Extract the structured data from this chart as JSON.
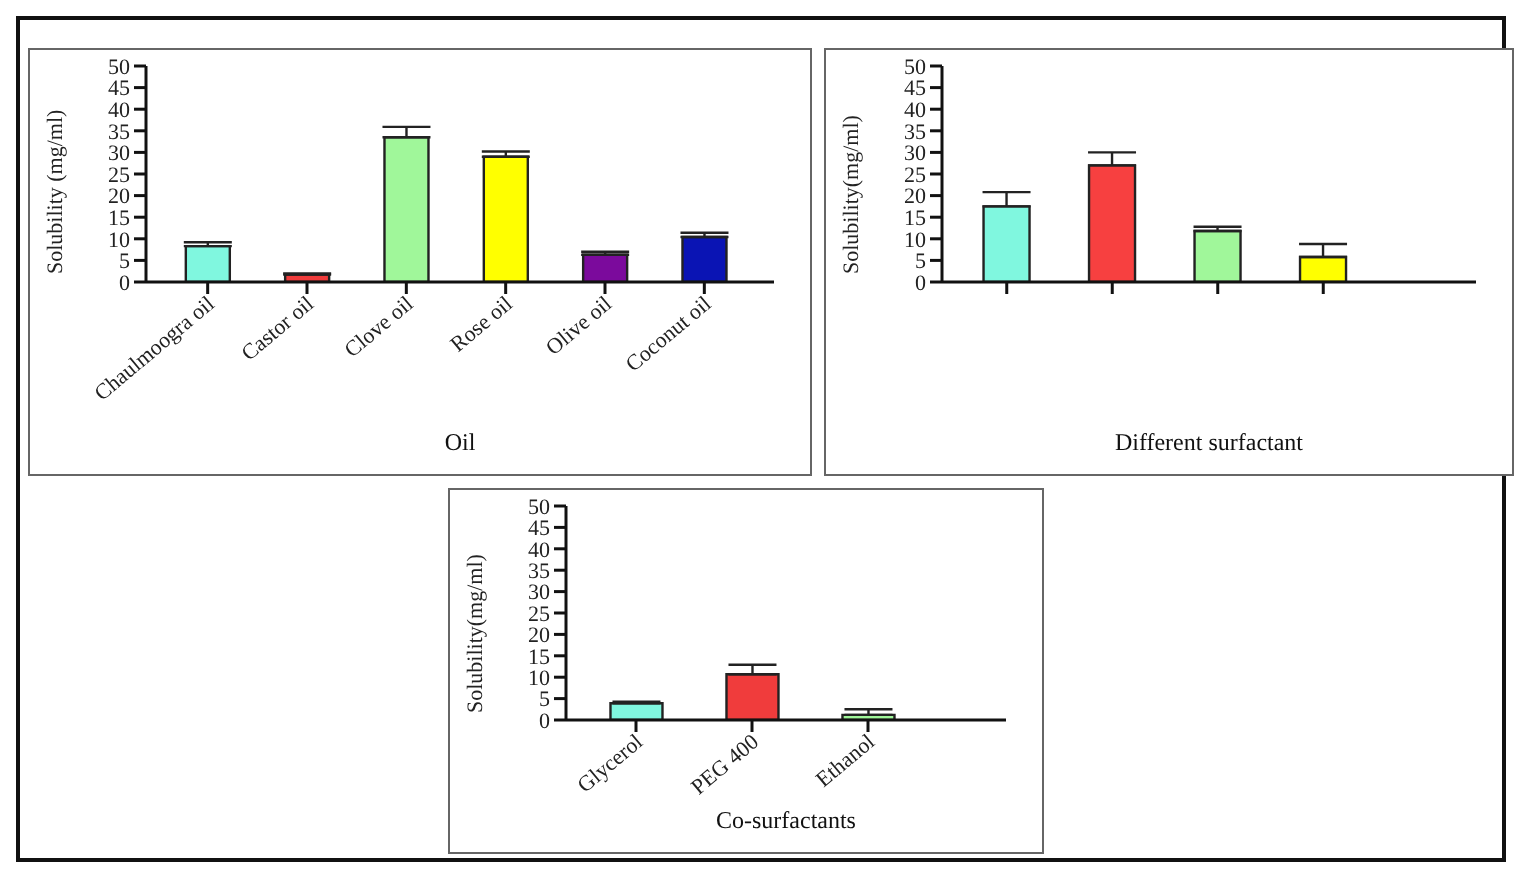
{
  "chart_data": [
    {
      "type": "bar",
      "xlabel": "Oil",
      "ylabel": "Solubility (mg/ml)",
      "categories": [
        "Chaulmoogra oil",
        "Castor oil",
        "Clove oil",
        "Rose oil",
        "Olive oil",
        "Coconut oil"
      ],
      "values": [
        8.3,
        1.7,
        33.5,
        29,
        6.3,
        10.4
      ],
      "colors": [
        "#80f7df",
        "#f03c3c",
        "#a0f79a",
        "#ffff00",
        "#7b0a9c",
        "#0a14b4"
      ],
      "errors": [
        [
          8.3,
          9.2
        ],
        [
          1.7,
          2.0
        ],
        [
          33.5,
          35.9
        ],
        [
          29,
          30.2
        ],
        [
          6.3,
          7.0
        ],
        [
          10.4,
          11.4
        ]
      ],
      "ylim": [
        0,
        50
      ],
      "yticks": [
        0,
        5,
        10,
        15,
        20,
        25,
        30,
        35,
        40,
        45,
        50
      ],
      "grid": false,
      "legend": false
    },
    {
      "type": "bar",
      "xlabel": "Different surfactant",
      "ylabel": "Solubility(mg/ml)",
      "categories": [
        null,
        null,
        null,
        null
      ],
      "values": [
        17.5,
        27,
        11.8,
        5.8
      ],
      "colors": [
        "#80f7df",
        "#f74040",
        "#a0f79a",
        "#ffff00"
      ],
      "errors": [
        [
          17.5,
          20.8
        ],
        [
          27,
          30
        ],
        [
          11.8,
          12.8
        ],
        [
          5.8,
          8.8
        ]
      ],
      "ylim": [
        0,
        50
      ],
      "yticks": [
        0,
        5,
        10,
        15,
        20,
        25,
        30,
        35,
        40,
        45,
        50
      ],
      "grid": false,
      "legend": false
    },
    {
      "type": "bar",
      "xlabel": "Co-surfactants",
      "ylabel": "Solubility(mg/ml)",
      "categories": [
        "Glycerol",
        "PEG 400",
        "Ethanol"
      ],
      "values": [
        3.9,
        10.7,
        1.2
      ],
      "colors": [
        "#80f7df",
        "#f03c3c",
        "#a0f79a"
      ],
      "errors": [
        [
          3.9,
          4.3
        ],
        [
          10.7,
          12.9
        ],
        [
          1.2,
          2.5
        ]
      ],
      "ylim": [
        0,
        50
      ],
      "yticks": [
        0,
        5,
        10,
        15,
        20,
        25,
        30,
        35,
        40,
        45,
        50
      ],
      "grid": false,
      "legend": false
    }
  ]
}
